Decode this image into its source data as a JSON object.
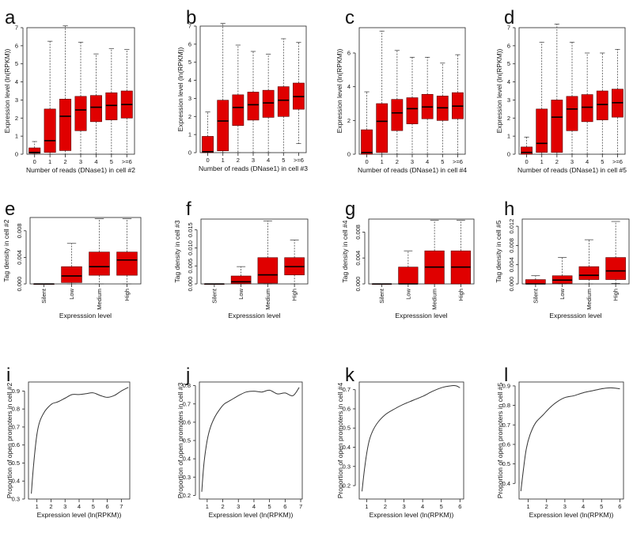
{
  "colors": {
    "box_fill": "#e00000",
    "box_stroke": "#5a0000",
    "median": "#000000",
    "axis": "#222222",
    "line": "#333333"
  },
  "chart_data": [
    {
      "label": "a",
      "type": "box",
      "xlabel": "Number of reads (DNase1) in cell #2",
      "ylabel": "Expression level (ln(RPKM))",
      "categories": [
        "0",
        "1",
        "2",
        "3",
        "4",
        "5",
        ">=6"
      ],
      "ylim": [
        0,
        7
      ],
      "yticks": [
        "0",
        "1",
        "2",
        "3",
        "4",
        "5",
        "6",
        "7"
      ],
      "tick_values": [
        0,
        1,
        2,
        3,
        4,
        5,
        6,
        7
      ],
      "ytick_rotate": false,
      "boxes": [
        {
          "q1": 0.05,
          "median": 0.1,
          "q3": 0.35,
          "whisker_low": 0,
          "whisker_high": 0.7
        },
        {
          "q1": 0.1,
          "median": 0.75,
          "q3": 2.5,
          "whisker_low": 0,
          "whisker_high": 6.25
        },
        {
          "q1": 0.2,
          "median": 2.1,
          "q3": 3.05,
          "whisker_low": 0,
          "whisker_high": 7.1
        },
        {
          "q1": 1.3,
          "median": 2.45,
          "q3": 3.2,
          "whisker_low": 0,
          "whisker_high": 6.2
        },
        {
          "q1": 1.8,
          "median": 2.6,
          "q3": 3.25,
          "whisker_low": 0,
          "whisker_high": 5.55
        },
        {
          "q1": 1.9,
          "median": 2.7,
          "q3": 3.4,
          "whisker_low": 0,
          "whisker_high": 5.85
        },
        {
          "q1": 2.0,
          "median": 2.75,
          "q3": 3.5,
          "whisker_low": 0,
          "whisker_high": 5.8
        }
      ]
    },
    {
      "label": "b",
      "type": "box",
      "xlabel": "Number of reads (DNase1) in cell #3",
      "ylabel": "Expression level (ln(RPKM))",
      "categories": [
        "0",
        "1",
        "2",
        "3",
        "4",
        "5",
        ">=6"
      ],
      "ylim": [
        0,
        7
      ],
      "yticks": [
        "0",
        "1",
        "2",
        "3",
        "4",
        "5",
        "6",
        "7"
      ],
      "tick_values": [
        0,
        1,
        2,
        3,
        4,
        5,
        6,
        7
      ],
      "ytick_rotate": false,
      "boxes": [
        {
          "q1": 0,
          "median": 0.05,
          "q3": 0.9,
          "whisker_low": 0,
          "whisker_high": 2.25
        },
        {
          "q1": 0.1,
          "median": 1.75,
          "q3": 2.9,
          "whisker_low": 0,
          "whisker_high": 7.15
        },
        {
          "q1": 1.5,
          "median": 2.5,
          "q3": 3.2,
          "whisker_low": 0,
          "whisker_high": 5.95
        },
        {
          "q1": 1.8,
          "median": 2.65,
          "q3": 3.35,
          "whisker_low": 0,
          "whisker_high": 5.6
        },
        {
          "q1": 1.95,
          "median": 2.75,
          "q3": 3.45,
          "whisker_low": 0,
          "whisker_high": 5.45
        },
        {
          "q1": 2.0,
          "median": 2.9,
          "q3": 3.65,
          "whisker_low": 0,
          "whisker_high": 6.3
        },
        {
          "q1": 2.4,
          "median": 3.1,
          "q3": 3.85,
          "whisker_low": 0.5,
          "whisker_high": 6.1
        }
      ]
    },
    {
      "label": "c",
      "type": "box",
      "xlabel": "Number of reads (DNase1) in cell #4",
      "ylabel": "Expression level (ln(RPKM))",
      "categories": [
        "0",
        "1",
        "2",
        "3",
        "4",
        "5",
        ">=6"
      ],
      "ylim": [
        0,
        7.5
      ],
      "yticks": [
        "0",
        "2",
        "4",
        "6"
      ],
      "tick_values": [
        0,
        2,
        4,
        6
      ],
      "ytick_rotate": false,
      "boxes": [
        {
          "q1": 0,
          "median": 0.1,
          "q3": 1.45,
          "whisker_low": 0,
          "whisker_high": 3.7
        },
        {
          "q1": 0.1,
          "median": 1.95,
          "q3": 3.0,
          "whisker_low": 0,
          "whisker_high": 7.3
        },
        {
          "q1": 1.4,
          "median": 2.45,
          "q3": 3.25,
          "whisker_low": 0,
          "whisker_high": 6.15
        },
        {
          "q1": 1.8,
          "median": 2.7,
          "q3": 3.35,
          "whisker_low": 0,
          "whisker_high": 5.75
        },
        {
          "q1": 2.1,
          "median": 2.8,
          "q3": 3.55,
          "whisker_low": 0,
          "whisker_high": 5.75
        },
        {
          "q1": 2.0,
          "median": 2.75,
          "q3": 3.45,
          "whisker_low": 0,
          "whisker_high": 5.4
        },
        {
          "q1": 2.1,
          "median": 2.85,
          "q3": 3.65,
          "whisker_low": 0,
          "whisker_high": 5.9
        }
      ]
    },
    {
      "label": "d",
      "type": "box",
      "xlabel": "Number of reads (DNase1) in cell #5",
      "ylabel": "Expression level (ln(RPKM))",
      "categories": [
        "0",
        "1",
        "2",
        "3",
        "4",
        "5",
        ">=6"
      ],
      "ylim": [
        0,
        7
      ],
      "yticks": [
        "0",
        "1",
        "2",
        "3",
        "4",
        "5",
        "6",
        "7"
      ],
      "tick_values": [
        0,
        1,
        2,
        3,
        4,
        5,
        6,
        7
      ],
      "ytick_rotate": false,
      "boxes": [
        {
          "q1": 0,
          "median": 0.1,
          "q3": 0.4,
          "whisker_low": 0,
          "whisker_high": 0.95
        },
        {
          "q1": 0.1,
          "median": 0.6,
          "q3": 2.5,
          "whisker_low": 0,
          "whisker_high": 6.2
        },
        {
          "q1": 0.1,
          "median": 2.05,
          "q3": 3.0,
          "whisker_low": 0,
          "whisker_high": 7.2
        },
        {
          "q1": 1.3,
          "median": 2.5,
          "q3": 3.2,
          "whisker_low": 0,
          "whisker_high": 6.2
        },
        {
          "q1": 1.8,
          "median": 2.6,
          "q3": 3.3,
          "whisker_low": 0,
          "whisker_high": 5.6
        },
        {
          "q1": 1.9,
          "median": 2.75,
          "q3": 3.5,
          "whisker_low": 0,
          "whisker_high": 5.6
        },
        {
          "q1": 2.05,
          "median": 2.85,
          "q3": 3.6,
          "whisker_low": 0,
          "whisker_high": 5.8
        }
      ]
    },
    {
      "label": "e",
      "type": "box",
      "xlabel": "Expresssion level",
      "ylabel": "Tag density in cell #2",
      "categories": [
        "Silent",
        "Low",
        "Medium",
        "High"
      ],
      "ylim": [
        0,
        0.01
      ],
      "yticks": [
        "0.000",
        "0.004",
        "0.008"
      ],
      "tick_values": [
        0,
        0.004,
        0.008
      ],
      "ytick_rotate": true,
      "boxes": [
        {
          "q1": 0,
          "median": 0,
          "q3": 0,
          "whisker_low": 0,
          "whisker_high": 0
        },
        {
          "q1": 0.0002,
          "median": 0.0012,
          "q3": 0.0026,
          "whisker_low": 0,
          "whisker_high": 0.0061
        },
        {
          "q1": 0.0013,
          "median": 0.0026,
          "q3": 0.0048,
          "whisker_low": 0,
          "whisker_high": 0.0098
        },
        {
          "q1": 0.0013,
          "median": 0.0036,
          "q3": 0.0048,
          "whisker_low": 0,
          "whisker_high": 0.0098
        }
      ]
    },
    {
      "label": "f",
      "type": "box",
      "xlabel": "Expresssion level",
      "ylabel": "Tag density in cell #3",
      "categories": [
        "Silent",
        "Low",
        "Medium",
        "High"
      ],
      "ylim": [
        0,
        0.018
      ],
      "yticks": [
        "0.000",
        "0.005",
        "0.010",
        "0.015"
      ],
      "tick_values": [
        0,
        0.005,
        0.01,
        0.015
      ],
      "ytick_rotate": true,
      "boxes": [
        {
          "q1": 0,
          "median": 0,
          "q3": 0,
          "whisker_low": 0,
          "whisker_high": 0
        },
        {
          "q1": 0.0001,
          "median": 0.0006,
          "q3": 0.0022,
          "whisker_low": 0,
          "whisker_high": 0.0048
        },
        {
          "q1": 0.0002,
          "median": 0.0025,
          "q3": 0.0073,
          "whisker_low": 0,
          "whisker_high": 0.0175
        },
        {
          "q1": 0.0025,
          "median": 0.0048,
          "q3": 0.0073,
          "whisker_low": 0,
          "whisker_high": 0.0122
        }
      ]
    },
    {
      "label": "g",
      "type": "box",
      "xlabel": "Expresssion level",
      "ylabel": "Tag density in cell #4",
      "categories": [
        "Silent",
        "Low",
        "Medium",
        "High"
      ],
      "ylim": [
        0,
        0.01
      ],
      "yticks": [
        "0.000",
        "0.004",
        "0.008"
      ],
      "tick_values": [
        0,
        0.004,
        0.008
      ],
      "ytick_rotate": true,
      "boxes": [
        {
          "q1": 0,
          "median": 0,
          "q3": 0,
          "whisker_low": 0,
          "whisker_high": 0
        },
        {
          "q1": 0,
          "median": 0,
          "q3": 0.0026,
          "whisker_low": 0,
          "whisker_high": 0.0051
        },
        {
          "q1": 0,
          "median": 0.0026,
          "q3": 0.0051,
          "whisker_low": 0,
          "whisker_high": 0.0098
        },
        {
          "q1": 0,
          "median": 0.0026,
          "q3": 0.0051,
          "whisker_low": 0,
          "whisker_high": 0.0098
        }
      ]
    },
    {
      "label": "h",
      "type": "box",
      "xlabel": "Expresssion level",
      "ylabel": "Tag density in cell #5",
      "categories": [
        "Silent",
        "Low",
        "Medium",
        "High"
      ],
      "ylim": [
        0,
        0.0135
      ],
      "yticks": [
        "0.000",
        "0.004",
        "0.008",
        "0.012"
      ],
      "tick_values": [
        0,
        0.004,
        0.008,
        0.012
      ],
      "ytick_rotate": true,
      "boxes": [
        {
          "q1": 0,
          "median": 0,
          "q3": 0.0009,
          "whisker_low": 0,
          "whisker_high": 0.0017
        },
        {
          "q1": 0.0001,
          "median": 0.0008,
          "q3": 0.0017,
          "whisker_low": 0,
          "whisker_high": 0.0055
        },
        {
          "q1": 0.0009,
          "median": 0.0018,
          "q3": 0.0036,
          "whisker_low": 0,
          "whisker_high": 0.0092
        },
        {
          "q1": 0.0009,
          "median": 0.0027,
          "q3": 0.0055,
          "whisker_low": 0.0001,
          "whisker_high": 0.013
        }
      ]
    },
    {
      "label": "i",
      "type": "line",
      "xlabel": "Expression level (ln(RPKM))",
      "ylabel": "Proportion of open promoters in cell #2",
      "xlim": [
        0.4,
        7.6
      ],
      "ylim": [
        0.3,
        0.95
      ],
      "xticks": [
        "1",
        "2",
        "3",
        "4",
        "5",
        "6",
        "7"
      ],
      "xtick_values": [
        1,
        2,
        3,
        4,
        5,
        6,
        7
      ],
      "yticks": [
        "0.3",
        "0.4",
        "0.5",
        "0.6",
        "0.7",
        "0.8",
        "0.9"
      ],
      "ytick_values": [
        0.3,
        0.4,
        0.5,
        0.6,
        0.7,
        0.8,
        0.9
      ],
      "x": [
        0.6,
        0.8,
        1.0,
        1.2,
        1.5,
        1.8,
        2.1,
        2.5,
        3.0,
        3.5,
        4.0,
        4.5,
        5.0,
        5.5,
        6.0,
        6.5,
        7.0,
        7.5
      ],
      "y": [
        0.33,
        0.52,
        0.66,
        0.73,
        0.78,
        0.81,
        0.83,
        0.84,
        0.86,
        0.88,
        0.88,
        0.885,
        0.89,
        0.875,
        0.865,
        0.875,
        0.9,
        0.92
      ]
    },
    {
      "label": "j",
      "type": "line",
      "xlabel": "Expression level (ln(RPKM))",
      "ylabel": "Proportion of open promoters in cell #3",
      "xlim": [
        0.5,
        7.1
      ],
      "ylim": [
        0.18,
        0.82
      ],
      "xticks": [
        "1",
        "2",
        "3",
        "4",
        "5",
        "6",
        "7"
      ],
      "xtick_values": [
        1,
        2,
        3,
        4,
        5,
        6,
        7
      ],
      "yticks": [
        "0.2",
        "0.3",
        "0.4",
        "0.5",
        "0.6",
        "0.7",
        "0.8"
      ],
      "ytick_values": [
        0.2,
        0.3,
        0.4,
        0.5,
        0.6,
        0.7,
        0.8
      ],
      "x": [
        0.65,
        0.8,
        1.0,
        1.2,
        1.5,
        1.8,
        2.1,
        2.5,
        3.0,
        3.5,
        4.0,
        4.5,
        5.0,
        5.5,
        6.0,
        6.5,
        6.9
      ],
      "y": [
        0.22,
        0.38,
        0.5,
        0.57,
        0.63,
        0.67,
        0.7,
        0.72,
        0.745,
        0.765,
        0.77,
        0.765,
        0.775,
        0.755,
        0.76,
        0.745,
        0.79
      ]
    },
    {
      "label": "k",
      "type": "line",
      "xlabel": "Expression level (ln(RPKM))",
      "ylabel": "Proportion of open promoters in cell #4",
      "xlim": [
        0.6,
        6.2
      ],
      "ylim": [
        0.13,
        0.74
      ],
      "xticks": [
        "1",
        "2",
        "3",
        "4",
        "5",
        "6"
      ],
      "xtick_values": [
        1,
        2,
        3,
        4,
        5,
        6
      ],
      "yticks": [
        "0.2",
        "0.3",
        "0.4",
        "0.5",
        "0.6",
        "0.7"
      ],
      "ytick_values": [
        0.2,
        0.3,
        0.4,
        0.5,
        0.6,
        0.7
      ],
      "x": [
        0.75,
        0.9,
        1.1,
        1.3,
        1.6,
        2.0,
        2.5,
        3.0,
        3.5,
        4.0,
        4.5,
        5.0,
        5.5,
        5.8,
        6.0
      ],
      "y": [
        0.17,
        0.3,
        0.42,
        0.48,
        0.53,
        0.57,
        0.6,
        0.625,
        0.645,
        0.665,
        0.69,
        0.71,
        0.72,
        0.72,
        0.71
      ]
    },
    {
      "label": "l",
      "type": "line",
      "xlabel": "Expression level (ln(RPKM))",
      "ylabel": "Proportion of open promoters in cell #5",
      "xlim": [
        0.5,
        6.2
      ],
      "ylim": [
        0.32,
        0.92
      ],
      "xticks": [
        "1",
        "2",
        "3",
        "4",
        "5",
        "6"
      ],
      "xtick_values": [
        1,
        2,
        3,
        4,
        5,
        6
      ],
      "yticks": [
        "0.4",
        "0.5",
        "0.6",
        "0.7",
        "0.8",
        "0.9"
      ],
      "ytick_values": [
        0.4,
        0.5,
        0.6,
        0.7,
        0.8,
        0.9
      ],
      "x": [
        0.6,
        0.75,
        0.9,
        1.1,
        1.4,
        1.8,
        2.2,
        2.6,
        3.0,
        3.5,
        4.0,
        4.5,
        5.0,
        5.5,
        6.0
      ],
      "y": [
        0.36,
        0.48,
        0.58,
        0.65,
        0.71,
        0.75,
        0.79,
        0.82,
        0.84,
        0.85,
        0.865,
        0.875,
        0.885,
        0.89,
        0.885
      ]
    }
  ]
}
